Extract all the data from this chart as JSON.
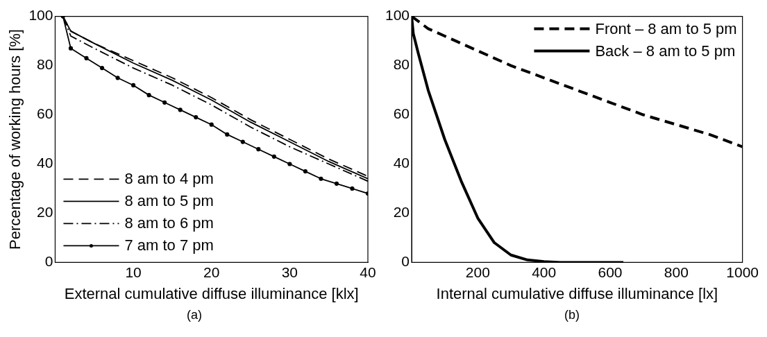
{
  "chart_data": [
    {
      "type": "line",
      "xlabel": "External cumulative diffuse illuminance [klx]",
      "ylabel": "Percentage of working hours [%]",
      "annotations": [
        "(a)"
      ],
      "xlim": [
        0,
        40
      ],
      "ylim": [
        0,
        100
      ],
      "xticks": [
        10,
        20,
        30,
        40
      ],
      "yticks": [
        0,
        20,
        40,
        60,
        80,
        100
      ],
      "grid": false,
      "legend": "bottom left",
      "series": [
        {
          "name": "8 am to 4 pm",
          "color": "#000000",
          "line_style": "dashed",
          "marker": "none",
          "x": [
            1,
            2,
            5,
            10,
            15,
            20,
            25,
            30,
            35,
            40
          ],
          "values": [
            100,
            94,
            89,
            82,
            75,
            67,
            58,
            50,
            42,
            35
          ]
        },
        {
          "name": "8 am to 5 pm",
          "color": "#000000",
          "line_style": "solid",
          "marker": "none",
          "x": [
            1,
            2,
            5,
            10,
            15,
            20,
            25,
            30,
            35,
            40
          ],
          "values": [
            100,
            94,
            89,
            81,
            74,
            66,
            57,
            49,
            41,
            34
          ]
        },
        {
          "name": "8 am to 6 pm",
          "color": "#000000",
          "line_style": "dashdot",
          "marker": "none",
          "x": [
            1,
            2,
            5,
            10,
            15,
            20,
            25,
            30,
            35,
            40
          ],
          "values": [
            100,
            92,
            87,
            79,
            72,
            64,
            55,
            47,
            40,
            33
          ]
        },
        {
          "name": "7 am to 7 pm",
          "color": "#000000",
          "line_style": "solid",
          "marker": "circle",
          "x": [
            1,
            2,
            4,
            6,
            8,
            10,
            12,
            14,
            16,
            18,
            20,
            22,
            24,
            26,
            28,
            30,
            32,
            34,
            36,
            38,
            40
          ],
          "values": [
            100,
            87,
            83,
            79,
            75,
            72,
            68,
            65,
            62,
            59,
            56,
            52,
            49,
            46,
            43,
            40,
            37,
            34,
            32,
            30,
            28
          ]
        }
      ]
    },
    {
      "type": "line",
      "xlabel": "Internal cumulative diffuse illuminance [lx]",
      "annotations": [
        "(b)"
      ],
      "xlim": [
        0,
        1000
      ],
      "ylim": [
        0,
        100
      ],
      "xticks": [
        200,
        400,
        600,
        800,
        1000
      ],
      "yticks": [
        0,
        20,
        40,
        60,
        80,
        100
      ],
      "grid": false,
      "legend": "top right",
      "series": [
        {
          "name": "Front – 8 am to 5 pm",
          "color": "#000000",
          "line_style": "dashed",
          "marker": "none",
          "x": [
            0,
            50,
            100,
            200,
            300,
            400,
            500,
            600,
            700,
            800,
            900,
            1000
          ],
          "values": [
            100,
            95,
            92,
            86,
            80,
            75,
            70,
            65,
            60,
            56,
            52,
            47
          ]
        },
        {
          "name": "Back – 8 am to 5 pm",
          "color": "#000000",
          "line_style": "solid",
          "marker": "none",
          "x": [
            0,
            5,
            20,
            50,
            100,
            150,
            200,
            250,
            300,
            350,
            400,
            450,
            640
          ],
          "values": [
            100,
            93,
            85,
            70,
            50,
            33,
            18,
            8,
            3,
            1,
            0.3,
            0,
            0
          ]
        }
      ]
    }
  ]
}
